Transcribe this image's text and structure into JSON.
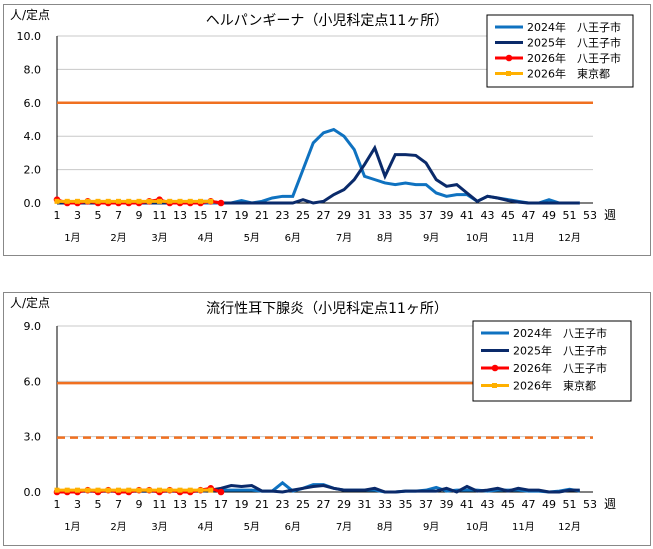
{
  "chart_data": [
    {
      "type": "line",
      "title": "ヘルパンギーナ（小児科定点11ヶ所）",
      "ylabel": "人/定点",
      "xlabel": "週",
      "ylim": [
        0,
        10
      ],
      "yticks": [
        "0.0",
        "2.0",
        "4.0",
        "6.0",
        "8.0",
        "10.0"
      ],
      "ytick_values": [
        0,
        2,
        4,
        6,
        8,
        10
      ],
      "xticks": [
        1,
        3,
        5,
        7,
        9,
        11,
        13,
        15,
        17,
        19,
        21,
        23,
        25,
        27,
        29,
        31,
        33,
        35,
        37,
        39,
        41,
        43,
        45,
        47,
        49,
        51,
        53
      ],
      "months": [
        "1月",
        "2月",
        "3月",
        "4月",
        "5月",
        "6月",
        "7月",
        "8月",
        "9月",
        "10月",
        "11月",
        "12月"
      ],
      "month_weeks": [
        2.5,
        7,
        11,
        15.5,
        20,
        24,
        29,
        33,
        37.5,
        42,
        46.5,
        51
      ],
      "grid": true,
      "legend": "top-right",
      "thresholds": [
        {
          "value": 6.0,
          "color": "#f07020",
          "dash": false
        }
      ],
      "series": [
        {
          "name": "2024年　八王子市",
          "color": "#0f72c0",
          "marker": false,
          "x_start": 1,
          "values": [
            0,
            0,
            0,
            0,
            0,
            0,
            0,
            0,
            0,
            0,
            0,
            0,
            0,
            0,
            0,
            0,
            0,
            0,
            0.15,
            0,
            0.1,
            0.3,
            0.4,
            0.4,
            2.0,
            3.6,
            4.2,
            4.4,
            4.0,
            3.2,
            1.6,
            1.4,
            1.2,
            1.1,
            1.2,
            1.1,
            1.1,
            0.6,
            0.4,
            0.5,
            0.5,
            0.1,
            0.4,
            0.3,
            0.2,
            0.1,
            0,
            0,
            0.2,
            0,
            0,
            0
          ]
        },
        {
          "name": "2025年　八王子市",
          "color": "#0a2a6a",
          "marker": false,
          "x_start": 1,
          "values": [
            0,
            0,
            0,
            0,
            0,
            0,
            0,
            0,
            0,
            0,
            0,
            0,
            0,
            0,
            0.1,
            0.1,
            0,
            0,
            0,
            0,
            0,
            0,
            0,
            0,
            0.2,
            0,
            0.1,
            0.5,
            0.8,
            1.4,
            2.3,
            3.3,
            1.6,
            2.9,
            2.9,
            2.85,
            2.4,
            1.4,
            1.0,
            1.1,
            0.6,
            0.1,
            0.4,
            0.3,
            0.15,
            0.05,
            0,
            0,
            0,
            0,
            0,
            0
          ]
        },
        {
          "name": "2026年　八王子市",
          "color": "#ff0000",
          "marker": true,
          "x_start": 1,
          "values": [
            0.2,
            0,
            0,
            0.1,
            0,
            0,
            0,
            0,
            0,
            0.1,
            0.2,
            0,
            0,
            0,
            0,
            0.1,
            0
          ]
        },
        {
          "name": "2026年　東京都",
          "color": "#ffb000",
          "marker": true,
          "x_start": 1,
          "values": [
            0.1,
            0.1,
            0.1,
            0.1,
            0.1,
            0.1,
            0.1,
            0.1,
            0.1,
            0.1,
            0.1,
            0.1,
            0.1,
            0.1,
            0.1,
            0.1
          ]
        }
      ]
    },
    {
      "type": "line",
      "title": "流行性耳下腺炎（小児科定点11ヶ所）",
      "ylabel": "人/定点",
      "xlabel": "週",
      "ylim": [
        0,
        9
      ],
      "yticks": [
        "0.0",
        "3.0",
        "6.0",
        "9.0"
      ],
      "ytick_values": [
        0,
        3,
        6,
        9
      ],
      "xticks": [
        1,
        3,
        5,
        7,
        9,
        11,
        13,
        15,
        17,
        19,
        21,
        23,
        25,
        27,
        29,
        31,
        33,
        35,
        37,
        39,
        41,
        43,
        45,
        47,
        49,
        51,
        53
      ],
      "months": [
        "1月",
        "2月",
        "3月",
        "4月",
        "5月",
        "6月",
        "7月",
        "8月",
        "9月",
        "10月",
        "11月",
        "12月"
      ],
      "month_weeks": [
        2.5,
        7,
        11,
        15.5,
        20,
        24,
        29,
        33,
        37.5,
        42,
        46.5,
        51
      ],
      "grid": true,
      "legend": "top-right",
      "thresholds": [
        {
          "value": 5.9,
          "color": "#f07020",
          "dash": false
        },
        {
          "value": 2.95,
          "color": "#f07020",
          "dash": true
        }
      ],
      "series": [
        {
          "name": "2024年　八王子市",
          "color": "#0f72c0",
          "marker": false,
          "x_start": 1,
          "values": [
            0.05,
            0.05,
            0.05,
            0.05,
            0.05,
            0.05,
            0.05,
            0.05,
            0.05,
            0.05,
            0.05,
            0.05,
            0.05,
            0.05,
            0.05,
            0.1,
            0.1,
            0.1,
            0.1,
            0.1,
            0.05,
            0.05,
            0.5,
            0.05,
            0.2,
            0.4,
            0.4,
            0.2,
            0.1,
            0.1,
            0.1,
            0.1,
            0,
            0,
            0.05,
            0.05,
            0.1,
            0.25,
            0.05,
            0.1,
            0.1,
            0.1,
            0.05,
            0.1,
            0.1,
            0.1,
            0.05,
            0.05,
            0,
            0.05,
            0.15,
            0.05
          ]
        },
        {
          "name": "2025年　八王子市",
          "color": "#0a2a6a",
          "marker": false,
          "x_start": 1,
          "values": [
            0.05,
            0.05,
            0.05,
            0.05,
            0.05,
            0.05,
            0.05,
            0.05,
            0.05,
            0.05,
            0.05,
            0.05,
            0.05,
            0.05,
            0.05,
            0.1,
            0.2,
            0.35,
            0.3,
            0.35,
            0.05,
            0.05,
            0,
            0.1,
            0.2,
            0.3,
            0.35,
            0.2,
            0.1,
            0.1,
            0.1,
            0.2,
            0,
            0,
            0.05,
            0.05,
            0.05,
            0.05,
            0.2,
            0,
            0.3,
            0.05,
            0.1,
            0.2,
            0.05,
            0.2,
            0.1,
            0.1,
            0,
            0,
            0.1,
            0.1
          ]
        },
        {
          "name": "2026年　八王子市",
          "color": "#ff0000",
          "marker": true,
          "x_start": 1,
          "values": [
            0,
            0,
            0,
            0.1,
            0,
            0.1,
            0,
            0,
            0.1,
            0.1,
            0,
            0.1,
            0,
            0,
            0.1,
            0.2,
            0
          ]
        },
        {
          "name": "2026年　東京都",
          "color": "#ffb000",
          "marker": true,
          "x_start": 1,
          "values": [
            0.1,
            0.1,
            0.1,
            0.1,
            0.1,
            0.1,
            0.1,
            0.1,
            0.1,
            0.1,
            0.1,
            0.1,
            0.1,
            0.1,
            0.1,
            0.1
          ]
        }
      ]
    }
  ]
}
